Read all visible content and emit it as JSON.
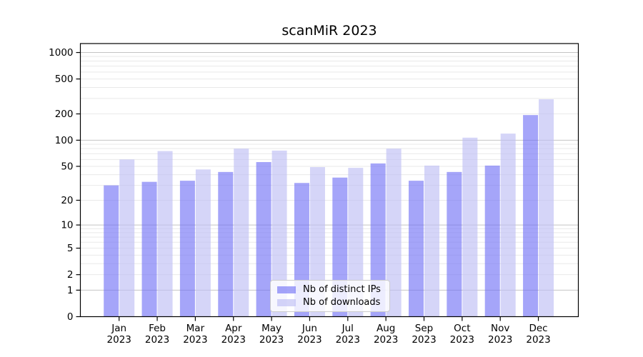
{
  "title": "scanMiR 2023",
  "chart_data": {
    "type": "bar",
    "title": "scanMiR 2023",
    "xlabel": "",
    "ylabel": "",
    "categories": [
      "Jan",
      "Feb",
      "Mar",
      "Apr",
      "May",
      "Jun",
      "Jul",
      "Aug",
      "Sep",
      "Oct",
      "Nov",
      "Dec"
    ],
    "year_label": "2023",
    "series": [
      {
        "name": "Nb of distinct IPs",
        "color": "rgba(110,110,245,0.62)",
        "values": [
          30,
          33,
          34,
          43,
          56,
          32,
          37,
          54,
          34,
          43,
          51,
          194
        ]
      },
      {
        "name": "Nb of downloads",
        "color": "rgba(190,190,245,0.65)",
        "values": [
          60,
          75,
          46,
          80,
          76,
          49,
          48,
          80,
          51,
          107,
          119,
          294
        ]
      }
    ],
    "yscale": "log1p",
    "yticks": [
      0,
      1,
      2,
      5,
      10,
      20,
      50,
      100,
      200,
      500,
      1000
    ],
    "ylim": [
      0,
      1265
    ],
    "grid": "horizontal major (decades) + minor",
    "legend_position": "inside bottom-center"
  },
  "colors": {
    "grid_major": "#c4c4c4",
    "grid_minor": "#e9e9e9",
    "axis": "#000000",
    "text": "#000000",
    "legend_border": "#cccccc",
    "legend_bg": "rgba(255,255,255,0.8)"
  }
}
